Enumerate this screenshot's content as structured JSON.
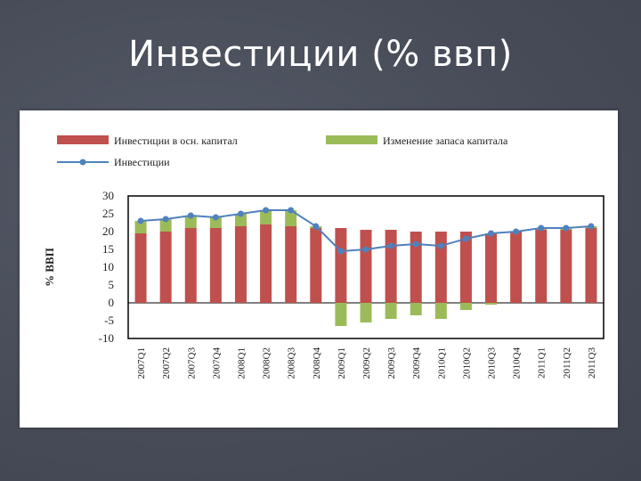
{
  "slide": {
    "title": "Инвестиции (% ввп)"
  },
  "chart_data": {
    "type": "bar",
    "categories": [
      "2007Q1",
      "2007Q2",
      "2007Q3",
      "2007Q4",
      "2008Q1",
      "2008Q2",
      "2008Q3",
      "2008Q4",
      "2009Q1",
      "2009Q2",
      "2009Q3",
      "2009Q4",
      "2010Q1",
      "2010Q2",
      "2010Q3",
      "2010Q4",
      "2011Q1",
      "2011Q2",
      "2011Q3"
    ],
    "series": [
      {
        "name": "Инвестиции в осн. капитал",
        "kind": "bar",
        "color": "#c0504d",
        "values": [
          19.5,
          20.0,
          21.0,
          21.0,
          21.5,
          22.0,
          21.5,
          21.0,
          21.0,
          20.5,
          20.5,
          20.0,
          20.0,
          20.0,
          19.5,
          20.0,
          20.5,
          20.5,
          21.0
        ]
      },
      {
        "name": "Изменение запаса капитала",
        "kind": "bar",
        "color": "#9bbb59",
        "values": [
          3.5,
          3.5,
          3.5,
          3.0,
          3.5,
          4.0,
          4.5,
          0.5,
          -6.5,
          -5.5,
          -4.5,
          -3.5,
          -4.5,
          -2.0,
          -0.5,
          0.0,
          0.5,
          0.5,
          0.5
        ]
      },
      {
        "name": "Инвестиции",
        "kind": "line",
        "color": "#4f81bd",
        "values": [
          23.0,
          23.5,
          24.5,
          24.0,
          25.0,
          26.0,
          26.0,
          21.5,
          14.5,
          15.0,
          16.0,
          16.5,
          16.0,
          18.0,
          19.5,
          20.0,
          21.0,
          21.0,
          21.5
        ]
      }
    ],
    "ylabel": "% ВВП",
    "ylim": [
      -10,
      30
    ],
    "yticks": [
      30,
      25,
      20,
      15,
      10,
      5,
      0,
      -5,
      -10
    ],
    "grid": false,
    "legend": "top"
  }
}
